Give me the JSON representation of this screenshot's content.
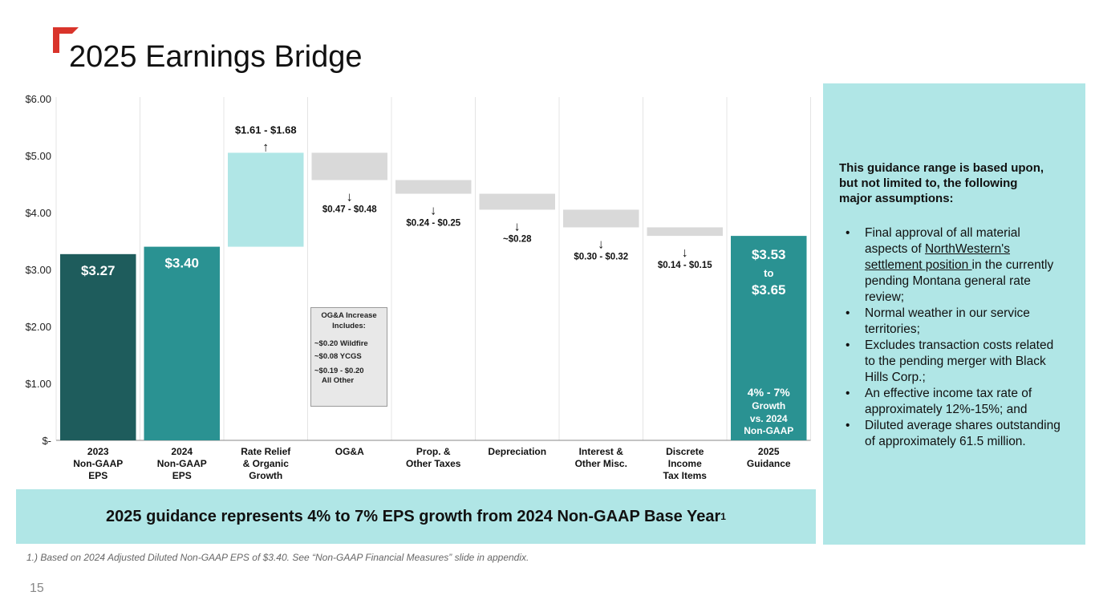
{
  "slide": {
    "title": "2025 Earnings Bridge",
    "page_number": "15",
    "footnote": "1.) Based on 2024 Adjusted Diluted Non-GAAP EPS of $3.40. See “Non-GAAP Financial Measures” slide in appendix.",
    "accent_color": "#d9342b"
  },
  "banner": {
    "text": "2025 guidance represents 4% to 7% EPS growth from 2024 Non-GAAP Base Year",
    "superscript": "1",
    "color": "#b0e6e6"
  },
  "side_panel": {
    "intro": "This guidance range is based upon, but not limited to, the following major assumptions:",
    "bullet_symbol": "•",
    "bullets": [
      {
        "pre": "Final approval of all material aspects of ",
        "link": "NorthWestern's settlement position ",
        "post": "in the currently pending Montana general rate review;"
      },
      {
        "pre": "Normal weather in our service territories;",
        "link": "",
        "post": ""
      },
      {
        "pre": "Excludes transaction costs related to the pending merger with Black Hills Corp.;",
        "link": "",
        "post": ""
      },
      {
        "pre": "An effective income tax rate of approximately 12%-15%; and",
        "link": "",
        "post": ""
      },
      {
        "pre": "Diluted average shares outstanding of approximately 61.5 million.",
        "link": "",
        "post": ""
      }
    ]
  },
  "oga_box": {
    "header_line1": "OG&A Increase",
    "header_line2": "Includes:",
    "items": [
      "~$0.20 Wildfire",
      "~$0.08 YCGS",
      "~$0.19 - $0.20",
      "All Other"
    ]
  },
  "chart_data": {
    "type": "bar",
    "subtype": "waterfall",
    "title": "2025 Earnings Bridge",
    "ylim": [
      0,
      6
    ],
    "yticks": [
      0,
      1,
      2,
      3,
      4,
      5,
      6
    ],
    "ytick_labels": [
      "$-",
      "$1.00",
      "$2.00",
      "$3.00",
      "$4.00",
      "$5.00",
      "$6.00"
    ],
    "xlabel": "",
    "ylabel": "",
    "colors": {
      "dark": "#1e5c5c",
      "teal": "#2a9292",
      "light": "#b0e6e6",
      "gray": "#d9d9d9"
    },
    "categories": [
      {
        "lines": [
          "2023",
          "Non-GAAP",
          "EPS"
        ],
        "kind": "total",
        "color": "dark",
        "low": 0,
        "high": 3.27,
        "value_label": "$3.27"
      },
      {
        "lines": [
          "2024",
          "Non-GAAP",
          "EPS"
        ],
        "kind": "total",
        "color": "teal",
        "low": 0,
        "high": 3.4,
        "value_label": "$3.40"
      },
      {
        "lines": [
          "Rate Relief",
          "& Organic",
          "Growth"
        ],
        "kind": "increase",
        "color": "light",
        "low": 3.4,
        "high": 5.05,
        "range_label": "$1.61 - $1.68",
        "arrow": "↑"
      },
      {
        "lines": [
          "OG&A"
        ],
        "kind": "decrease",
        "color": "gray",
        "low": 4.57,
        "high": 5.05,
        "range_label": "$0.47 - $0.48",
        "arrow": "↓"
      },
      {
        "lines": [
          "Prop. &",
          "Other Taxes"
        ],
        "kind": "decrease",
        "color": "gray",
        "low": 4.33,
        "high": 4.57,
        "range_label": "$0.24 - $0.25",
        "arrow": "↓"
      },
      {
        "lines": [
          "Depreciation"
        ],
        "kind": "decrease",
        "color": "gray",
        "low": 4.05,
        "high": 4.33,
        "range_label": "~$0.28",
        "arrow": "↓"
      },
      {
        "lines": [
          "Interest &",
          "Other Misc."
        ],
        "kind": "decrease",
        "color": "gray",
        "low": 3.74,
        "high": 4.05,
        "range_label": "$0.30 - $0.32",
        "arrow": "↓"
      },
      {
        "lines": [
          "Discrete",
          "Income",
          "Tax Items"
        ],
        "kind": "decrease",
        "color": "gray",
        "low": 3.59,
        "high": 3.74,
        "range_label": "$0.14 - $0.15",
        "arrow": "↓"
      },
      {
        "lines": [
          "2025",
          "Guidance"
        ],
        "kind": "total",
        "color": "teal",
        "low": 0,
        "high": 3.59,
        "value_lines": [
          "$3.53",
          "to",
          "$3.65"
        ],
        "growth_lines": [
          "4% - 7%",
          "Growth",
          "vs. 2024",
          "Non-GAAP"
        ]
      }
    ]
  }
}
